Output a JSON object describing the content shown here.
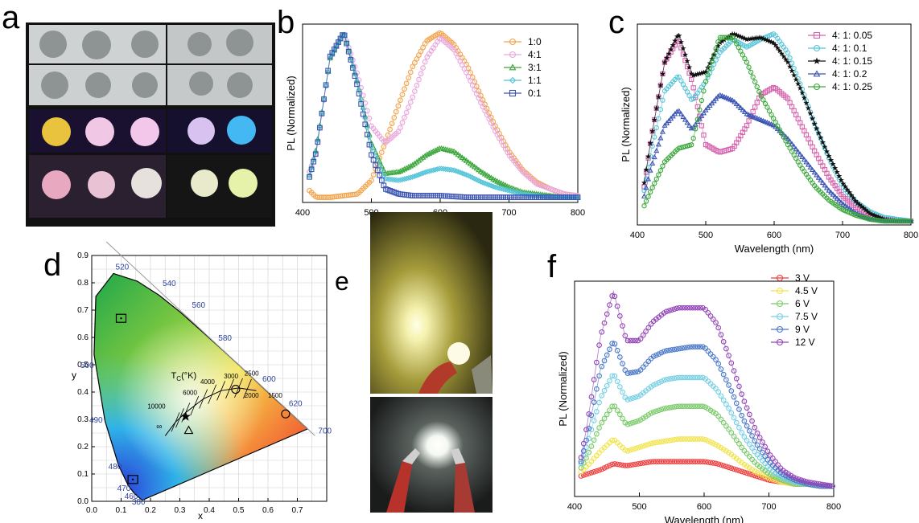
{
  "panel_labels": {
    "a": "a",
    "b": "b",
    "c": "c",
    "d": "d",
    "e": "e",
    "f": "f"
  },
  "colors": {
    "orange": "#f3a34a",
    "pink": "#e8a6dd",
    "green": "#3aa63a",
    "cyan": "#55c4d8",
    "blue": "#3a54b4",
    "magenta": "#d563ad",
    "black": "#111111",
    "red": "#ee3b3b",
    "yellow": "#f1e44e",
    "lightgreen": "#7bca6a",
    "skyblue": "#76cfe4",
    "steel": "#4a78c8",
    "purple": "#9245b6"
  },
  "chart_data": [
    {
      "panel": "b",
      "type": "line",
      "xlabel": "Wavelength (nm)",
      "ylabel": "PL (Normalized)",
      "xlim": [
        400,
        800
      ],
      "ylim": [
        0,
        1.05
      ],
      "xticks": [
        "400",
        "500",
        "600",
        "700",
        "800"
      ],
      "legend_position": "top-right",
      "series": [
        {
          "name": "1:0",
          "color": "#f3a34a",
          "marker": "circle",
          "x": [
            410,
            420,
            440,
            460,
            480,
            500,
            520,
            540,
            560,
            580,
            600,
            620,
            640,
            660,
            680,
            700,
            720,
            740,
            760,
            780,
            800
          ],
          "y": [
            0.07,
            0.03,
            0.03,
            0.04,
            0.05,
            0.13,
            0.35,
            0.58,
            0.8,
            0.95,
            1.0,
            0.93,
            0.8,
            0.62,
            0.45,
            0.3,
            0.19,
            0.12,
            0.08,
            0.05,
            0.04
          ]
        },
        {
          "name": "4:1",
          "color": "#e8a6dd",
          "marker": "circle",
          "x": [
            410,
            420,
            440,
            460,
            480,
            500,
            520,
            540,
            560,
            580,
            600,
            620,
            640,
            660,
            680,
            700,
            720,
            740,
            760,
            780,
            800
          ],
          "y": [
            0.18,
            0.3,
            0.85,
            1.0,
            0.75,
            0.45,
            0.35,
            0.42,
            0.62,
            0.85,
            0.97,
            0.9,
            0.75,
            0.58,
            0.42,
            0.28,
            0.18,
            0.11,
            0.08,
            0.05,
            0.04
          ]
        },
        {
          "name": "3:1",
          "color": "#3aa63a",
          "marker": "triangle",
          "x": [
            410,
            420,
            440,
            460,
            480,
            500,
            520,
            540,
            560,
            580,
            600,
            620,
            640,
            660,
            680,
            700,
            720,
            740,
            760,
            780,
            800
          ],
          "y": [
            0.16,
            0.32,
            0.85,
            1.0,
            0.7,
            0.35,
            0.17,
            0.18,
            0.22,
            0.28,
            0.32,
            0.3,
            0.24,
            0.18,
            0.13,
            0.09,
            0.06,
            0.05,
            0.04,
            0.03,
            0.03
          ]
        },
        {
          "name": "1:1",
          "color": "#55c4d8",
          "marker": "diamond",
          "x": [
            410,
            420,
            440,
            460,
            480,
            500,
            520,
            540,
            560,
            580,
            600,
            620,
            640,
            660,
            680,
            700,
            720,
            740,
            760,
            780,
            800
          ],
          "y": [
            0.16,
            0.31,
            0.85,
            1.0,
            0.7,
            0.33,
            0.14,
            0.13,
            0.15,
            0.18,
            0.2,
            0.19,
            0.16,
            0.12,
            0.09,
            0.07,
            0.05,
            0.04,
            0.03,
            0.03,
            0.03
          ]
        },
        {
          "name": "0:1",
          "color": "#3a54b4",
          "marker": "square",
          "x": [
            410,
            420,
            440,
            460,
            480,
            500,
            520,
            540,
            560,
            580,
            600,
            620,
            640,
            660,
            680,
            700,
            720,
            740,
            760,
            780,
            800
          ],
          "y": [
            0.15,
            0.3,
            0.86,
            1.0,
            0.68,
            0.28,
            0.08,
            0.05,
            0.04,
            0.04,
            0.04,
            0.035,
            0.03,
            0.03,
            0.03,
            0.03,
            0.03,
            0.03,
            0.03,
            0.03,
            0.03
          ]
        }
      ]
    },
    {
      "panel": "c",
      "type": "line",
      "xlabel": "Wavelength (nm)",
      "ylabel": "PL (Normalized)",
      "xlim": [
        400,
        800
      ],
      "ylim": [
        0,
        1.05
      ],
      "xticks": [
        "400",
        "500",
        "600",
        "700",
        "800"
      ],
      "legend_position": "top-right",
      "series": [
        {
          "name": "4: 1: 0.05",
          "color": "#d563ad",
          "marker": "square",
          "x": [
            410,
            420,
            440,
            460,
            480,
            500,
            520,
            540,
            560,
            580,
            600,
            620,
            640,
            660,
            680,
            700,
            720,
            740,
            760,
            780,
            800
          ],
          "y": [
            0.2,
            0.45,
            0.85,
            0.97,
            0.75,
            0.42,
            0.38,
            0.4,
            0.52,
            0.68,
            0.72,
            0.66,
            0.52,
            0.38,
            0.25,
            0.15,
            0.09,
            0.05,
            0.03,
            0.02,
            0.02
          ]
        },
        {
          "name": "4: 1: 0.1",
          "color": "#55c4d8",
          "marker": "circle",
          "x": [
            410,
            420,
            440,
            460,
            480,
            500,
            520,
            540,
            560,
            580,
            600,
            620,
            640,
            660,
            680,
            700,
            720,
            740,
            760,
            780,
            800
          ],
          "y": [
            0.18,
            0.38,
            0.7,
            0.78,
            0.65,
            0.75,
            0.9,
            0.97,
            0.93,
            0.97,
            1.0,
            0.9,
            0.72,
            0.52,
            0.35,
            0.2,
            0.12,
            0.07,
            0.04,
            0.03,
            0.02
          ]
        },
        {
          "name": "4: 1: 0.15",
          "color": "#111111",
          "marker": "star",
          "x": [
            410,
            420,
            440,
            460,
            480,
            500,
            520,
            540,
            560,
            580,
            600,
            620,
            640,
            660,
            680,
            700,
            720,
            740,
            760,
            780,
            800
          ],
          "y": [
            0.22,
            0.45,
            0.85,
            1.0,
            0.78,
            0.8,
            0.95,
            1.0,
            0.97,
            0.98,
            0.95,
            0.85,
            0.7,
            0.52,
            0.36,
            0.22,
            0.12,
            0.06,
            0.03,
            0.02,
            0.02
          ]
        },
        {
          "name": "4: 1: 0.2",
          "color": "#3a54b4",
          "marker": "triangle",
          "x": [
            410,
            420,
            440,
            460,
            480,
            500,
            520,
            540,
            560,
            580,
            600,
            620,
            640,
            660,
            680,
            700,
            720,
            740,
            760,
            780,
            800
          ],
          "y": [
            0.15,
            0.3,
            0.52,
            0.6,
            0.5,
            0.6,
            0.68,
            0.65,
            0.58,
            0.55,
            0.52,
            0.45,
            0.36,
            0.27,
            0.18,
            0.11,
            0.06,
            0.03,
            0.02,
            0.02,
            0.02
          ]
        },
        {
          "name": "4: 1: 0.25",
          "color": "#3aa63a",
          "marker": "circle",
          "x": [
            410,
            420,
            440,
            460,
            480,
            500,
            520,
            540,
            560,
            580,
            600,
            620,
            640,
            660,
            680,
            700,
            720,
            740,
            760,
            780,
            800
          ],
          "y": [
            0.1,
            0.18,
            0.33,
            0.4,
            0.42,
            0.75,
            0.98,
            0.98,
            0.85,
            0.68,
            0.55,
            0.42,
            0.3,
            0.2,
            0.13,
            0.08,
            0.05,
            0.03,
            0.02,
            0.02,
            0.02
          ]
        }
      ]
    },
    {
      "panel": "d",
      "type": "scatter",
      "xlabel": "x",
      "ylabel": "y",
      "xlim": [
        0,
        0.8
      ],
      "ylim": [
        0,
        0.9
      ],
      "xticks": [
        "0.0",
        "0.1",
        "0.2",
        "0.3",
        "0.4",
        "0.5",
        "0.6",
        "0.7"
      ],
      "yticks": [
        "0.0",
        "0.1",
        "0.2",
        "0.3",
        "0.4",
        "0.5",
        "0.6",
        "0.7",
        "0.8",
        "0.9"
      ],
      "wavelength_labels": [
        "380",
        "460",
        "470",
        "480",
        "490",
        "500",
        "520",
        "540",
        "560",
        "580",
        "600",
        "620",
        "700"
      ],
      "cct_label": "T",
      "cct_label_sub": "C",
      "cct_label_unit": "(°K)",
      "cct_values": [
        "10000",
        "6000",
        "4000",
        "3000",
        "2500",
        "2000",
        "1500"
      ],
      "infinity_label": "∞",
      "points": [
        {
          "marker": "square",
          "x": 0.1,
          "y": 0.67
        },
        {
          "marker": "square",
          "x": 0.14,
          "y": 0.08
        },
        {
          "marker": "circle",
          "x": 0.49,
          "y": 0.41
        },
        {
          "marker": "circle",
          "x": 0.66,
          "y": 0.32
        },
        {
          "marker": "triangle",
          "x": 0.33,
          "y": 0.26
        },
        {
          "marker": "star",
          "x": 0.32,
          "y": 0.31
        }
      ]
    },
    {
      "panel": "f",
      "type": "line",
      "xlabel": "Wavelength (nm)",
      "ylabel": "PL (Normalized)",
      "xlim": [
        400,
        800
      ],
      "ylim": [
        0,
        1.05
      ],
      "xticks": [
        "400",
        "500",
        "600",
        "700",
        "800"
      ],
      "legend_position": "top-right",
      "series": [
        {
          "name": "3 V",
          "color": "#ee3b3b",
          "marker": "circle",
          "x": [
            410,
            420,
            440,
            460,
            480,
            500,
            520,
            540,
            560,
            580,
            600,
            620,
            640,
            660,
            680,
            700,
            720,
            740,
            760,
            780,
            800
          ],
          "y": [
            0.1,
            0.11,
            0.13,
            0.16,
            0.15,
            0.16,
            0.17,
            0.17,
            0.17,
            0.17,
            0.17,
            0.16,
            0.14,
            0.12,
            0.1,
            0.08,
            0.07,
            0.06,
            0.06,
            0.05,
            0.05
          ]
        },
        {
          "name": "4.5 V",
          "color": "#f1e44e",
          "marker": "circle",
          "x": [
            410,
            420,
            440,
            460,
            480,
            500,
            520,
            540,
            560,
            580,
            600,
            620,
            640,
            660,
            680,
            700,
            720,
            740,
            760,
            780,
            800
          ],
          "y": [
            0.12,
            0.15,
            0.22,
            0.28,
            0.22,
            0.24,
            0.26,
            0.27,
            0.28,
            0.28,
            0.28,
            0.25,
            0.21,
            0.16,
            0.12,
            0.09,
            0.07,
            0.06,
            0.06,
            0.05,
            0.05
          ]
        },
        {
          "name": "6 V",
          "color": "#7bca6a",
          "marker": "circle",
          "x": [
            410,
            420,
            440,
            460,
            480,
            500,
            520,
            540,
            560,
            580,
            600,
            620,
            640,
            660,
            680,
            700,
            720,
            740,
            760,
            780,
            800
          ],
          "y": [
            0.14,
            0.2,
            0.35,
            0.45,
            0.35,
            0.37,
            0.41,
            0.43,
            0.44,
            0.44,
            0.44,
            0.4,
            0.32,
            0.23,
            0.16,
            0.11,
            0.08,
            0.06,
            0.06,
            0.05,
            0.05
          ]
        },
        {
          "name": "7.5 V",
          "color": "#76cfe4",
          "marker": "circle",
          "x": [
            410,
            420,
            440,
            460,
            480,
            500,
            520,
            540,
            560,
            580,
            600,
            620,
            640,
            660,
            680,
            700,
            720,
            740,
            760,
            780,
            800
          ],
          "y": [
            0.16,
            0.26,
            0.48,
            0.6,
            0.47,
            0.49,
            0.54,
            0.57,
            0.58,
            0.58,
            0.58,
            0.52,
            0.42,
            0.3,
            0.21,
            0.14,
            0.09,
            0.07,
            0.06,
            0.05,
            0.05
          ]
        },
        {
          "name": "9 V",
          "color": "#4a78c8",
          "marker": "circle",
          "x": [
            410,
            420,
            440,
            460,
            480,
            500,
            520,
            540,
            560,
            580,
            600,
            620,
            640,
            660,
            680,
            700,
            720,
            740,
            760,
            780,
            800
          ],
          "y": [
            0.17,
            0.3,
            0.62,
            0.76,
            0.6,
            0.61,
            0.68,
            0.71,
            0.72,
            0.73,
            0.73,
            0.66,
            0.53,
            0.38,
            0.26,
            0.17,
            0.11,
            0.08,
            0.06,
            0.05,
            0.05
          ]
        },
        {
          "name": "12 V",
          "color": "#9245b6",
          "marker": "circle",
          "x": [
            410,
            420,
            440,
            460,
            480,
            500,
            520,
            540,
            560,
            580,
            600,
            620,
            640,
            660,
            680,
            700,
            720,
            740,
            760,
            780,
            800
          ],
          "y": [
            0.19,
            0.36,
            0.78,
            1.0,
            0.76,
            0.76,
            0.85,
            0.9,
            0.92,
            0.92,
            0.92,
            0.84,
            0.67,
            0.48,
            0.32,
            0.21,
            0.13,
            0.09,
            0.07,
            0.06,
            0.05
          ]
        }
      ]
    }
  ]
}
